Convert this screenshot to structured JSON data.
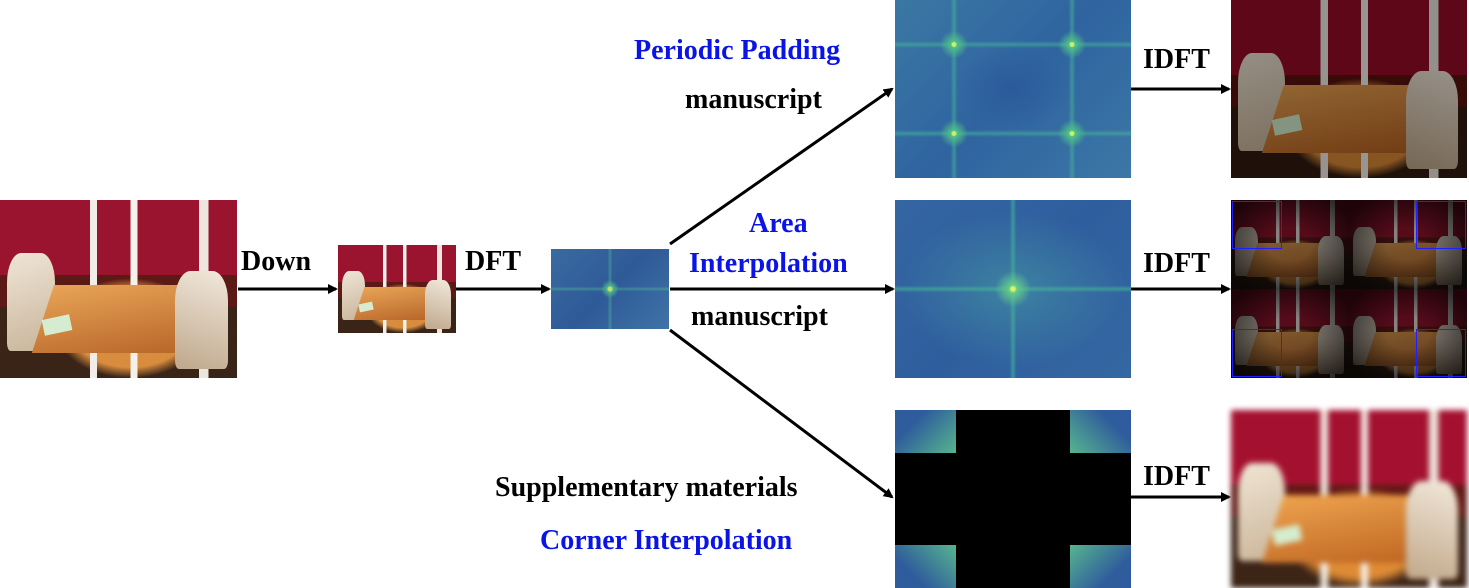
{
  "labels": {
    "down": "Down",
    "dft": "DFT",
    "idft_top": "IDFT",
    "idft_mid": "IDFT",
    "idft_bottom": "IDFT",
    "periodic_padding": "Periodic Padding",
    "manuscript_top": "manuscript",
    "area": "Area",
    "interpolation": "Interpolation",
    "manuscript_mid": "manuscript",
    "supplementary": "Supplementary materials",
    "corner_interpolation": "Corner Interpolation"
  },
  "colors": {
    "method_label": "#0a14e6",
    "step_label": "#000000",
    "arrow": "#000000",
    "highlight_box": "#2020ff"
  }
}
